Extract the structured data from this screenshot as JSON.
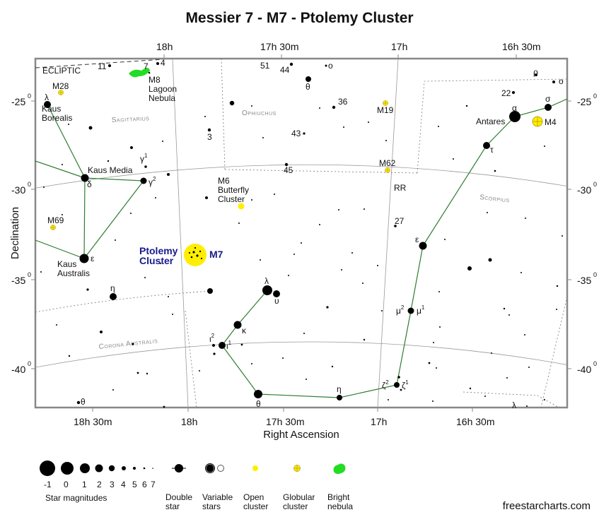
{
  "title": "Messier 7 - M7 - Ptolemy Cluster",
  "axes": {
    "ra_label": "Right Ascension",
    "dec_label": "Declination",
    "top_ticks": [
      "18h",
      "17h 30m",
      "17h",
      "16h 30m"
    ],
    "bottom_ticks": [
      "18h 30m",
      "18h",
      "17h 30m",
      "17h",
      "16h 30m"
    ],
    "dec_ticks_left": [
      "-25",
      "-30",
      "-35",
      "-40"
    ],
    "dec_ticks_right": [
      "-25",
      "-30",
      "-35",
      "-40"
    ],
    "dec_tick_sup": "0"
  },
  "labels": {
    "ecliptic": "ECLIPTIC",
    "constellations": {
      "sagittarius": "Sagittarius",
      "ophiuchus": "Ophiuchus",
      "scorpius": "Scorpius",
      "corona_australis": "Corona Australis"
    },
    "star_names": {
      "kaus_borealis_1": "Kaus",
      "kaus_borealis_2": "Borealis",
      "kaus_media": "Kaus Media",
      "kaus_australis_1": "Kaus",
      "kaus_australis_2": "Australis",
      "antares": "Antares"
    },
    "greek": {
      "lambda_sgr": "λ",
      "delta_sgr": "δ",
      "gamma2": "γ",
      "gamma1": "γ",
      "epsilon_sgr": "ε",
      "eta_sgr": "η",
      "theta_cra": "θ",
      "theta_oph": "θ",
      "omicron_oph": "o",
      "alpha_sco": "α",
      "sigma_sco": "σ",
      "tau_sco": "τ",
      "rho_sco": "ρ",
      "omicron_sco": "o",
      "epsilon_sco": "ε",
      "mu2": "μ",
      "mu1": "μ",
      "lambda_sco": "λ",
      "upsilon_sco": "υ",
      "kappa_sco": "κ",
      "iota2": "ι",
      "iota1": "ι",
      "theta_sco": "θ",
      "eta_sco": "η",
      "zeta2": "ζ",
      "zeta1": "ζ",
      "lambda_ara": "λ"
    },
    "greek_sup": {
      "one": "1",
      "two": "2"
    },
    "flamsteed": {
      "n11": "11",
      "n7": "7",
      "n4": "4",
      "n51": "51",
      "n44": "44",
      "n36": "36",
      "n22": "22",
      "n3": "3",
      "n43": "43",
      "n45": "45",
      "n27": "27",
      "rr": "RR"
    },
    "objects": {
      "m28": "M28",
      "m8": "M8",
      "lagoon_1": "Lagoon",
      "lagoon_2": "Nebula",
      "m19": "M19",
      "m4": "M4",
      "m62": "M62",
      "m6": "M6",
      "butterfly_1": "Butterfly",
      "butterfly_2": "Cluster",
      "m69": "M69",
      "m7": "M7",
      "ptolemy_1": "Ptolemy",
      "ptolemy_2": "Cluster"
    }
  },
  "legend": {
    "magnitudes": [
      "-1",
      "0",
      "1",
      "2",
      "3",
      "4",
      "5",
      "6",
      "7"
    ],
    "star_magnitudes": "Star magnitudes",
    "double_1": "Double",
    "double_2": "star",
    "variable_1": "Variable",
    "variable_2": "stars",
    "open_1": "Open",
    "open_2": "cluster",
    "globular_1": "Globular",
    "globular_2": "cluster",
    "bright_1": "Bright",
    "bright_2": "nebula"
  },
  "colors": {
    "highlight_label": "#1a1a8c",
    "constellation_line": "#2e7d32",
    "open_cluster": "#ffee00",
    "globular_cluster": "#ffee00",
    "nebula": "#22dd22",
    "frame": "#888888",
    "grid": "#999999"
  },
  "credit": "freestarcharts.com"
}
